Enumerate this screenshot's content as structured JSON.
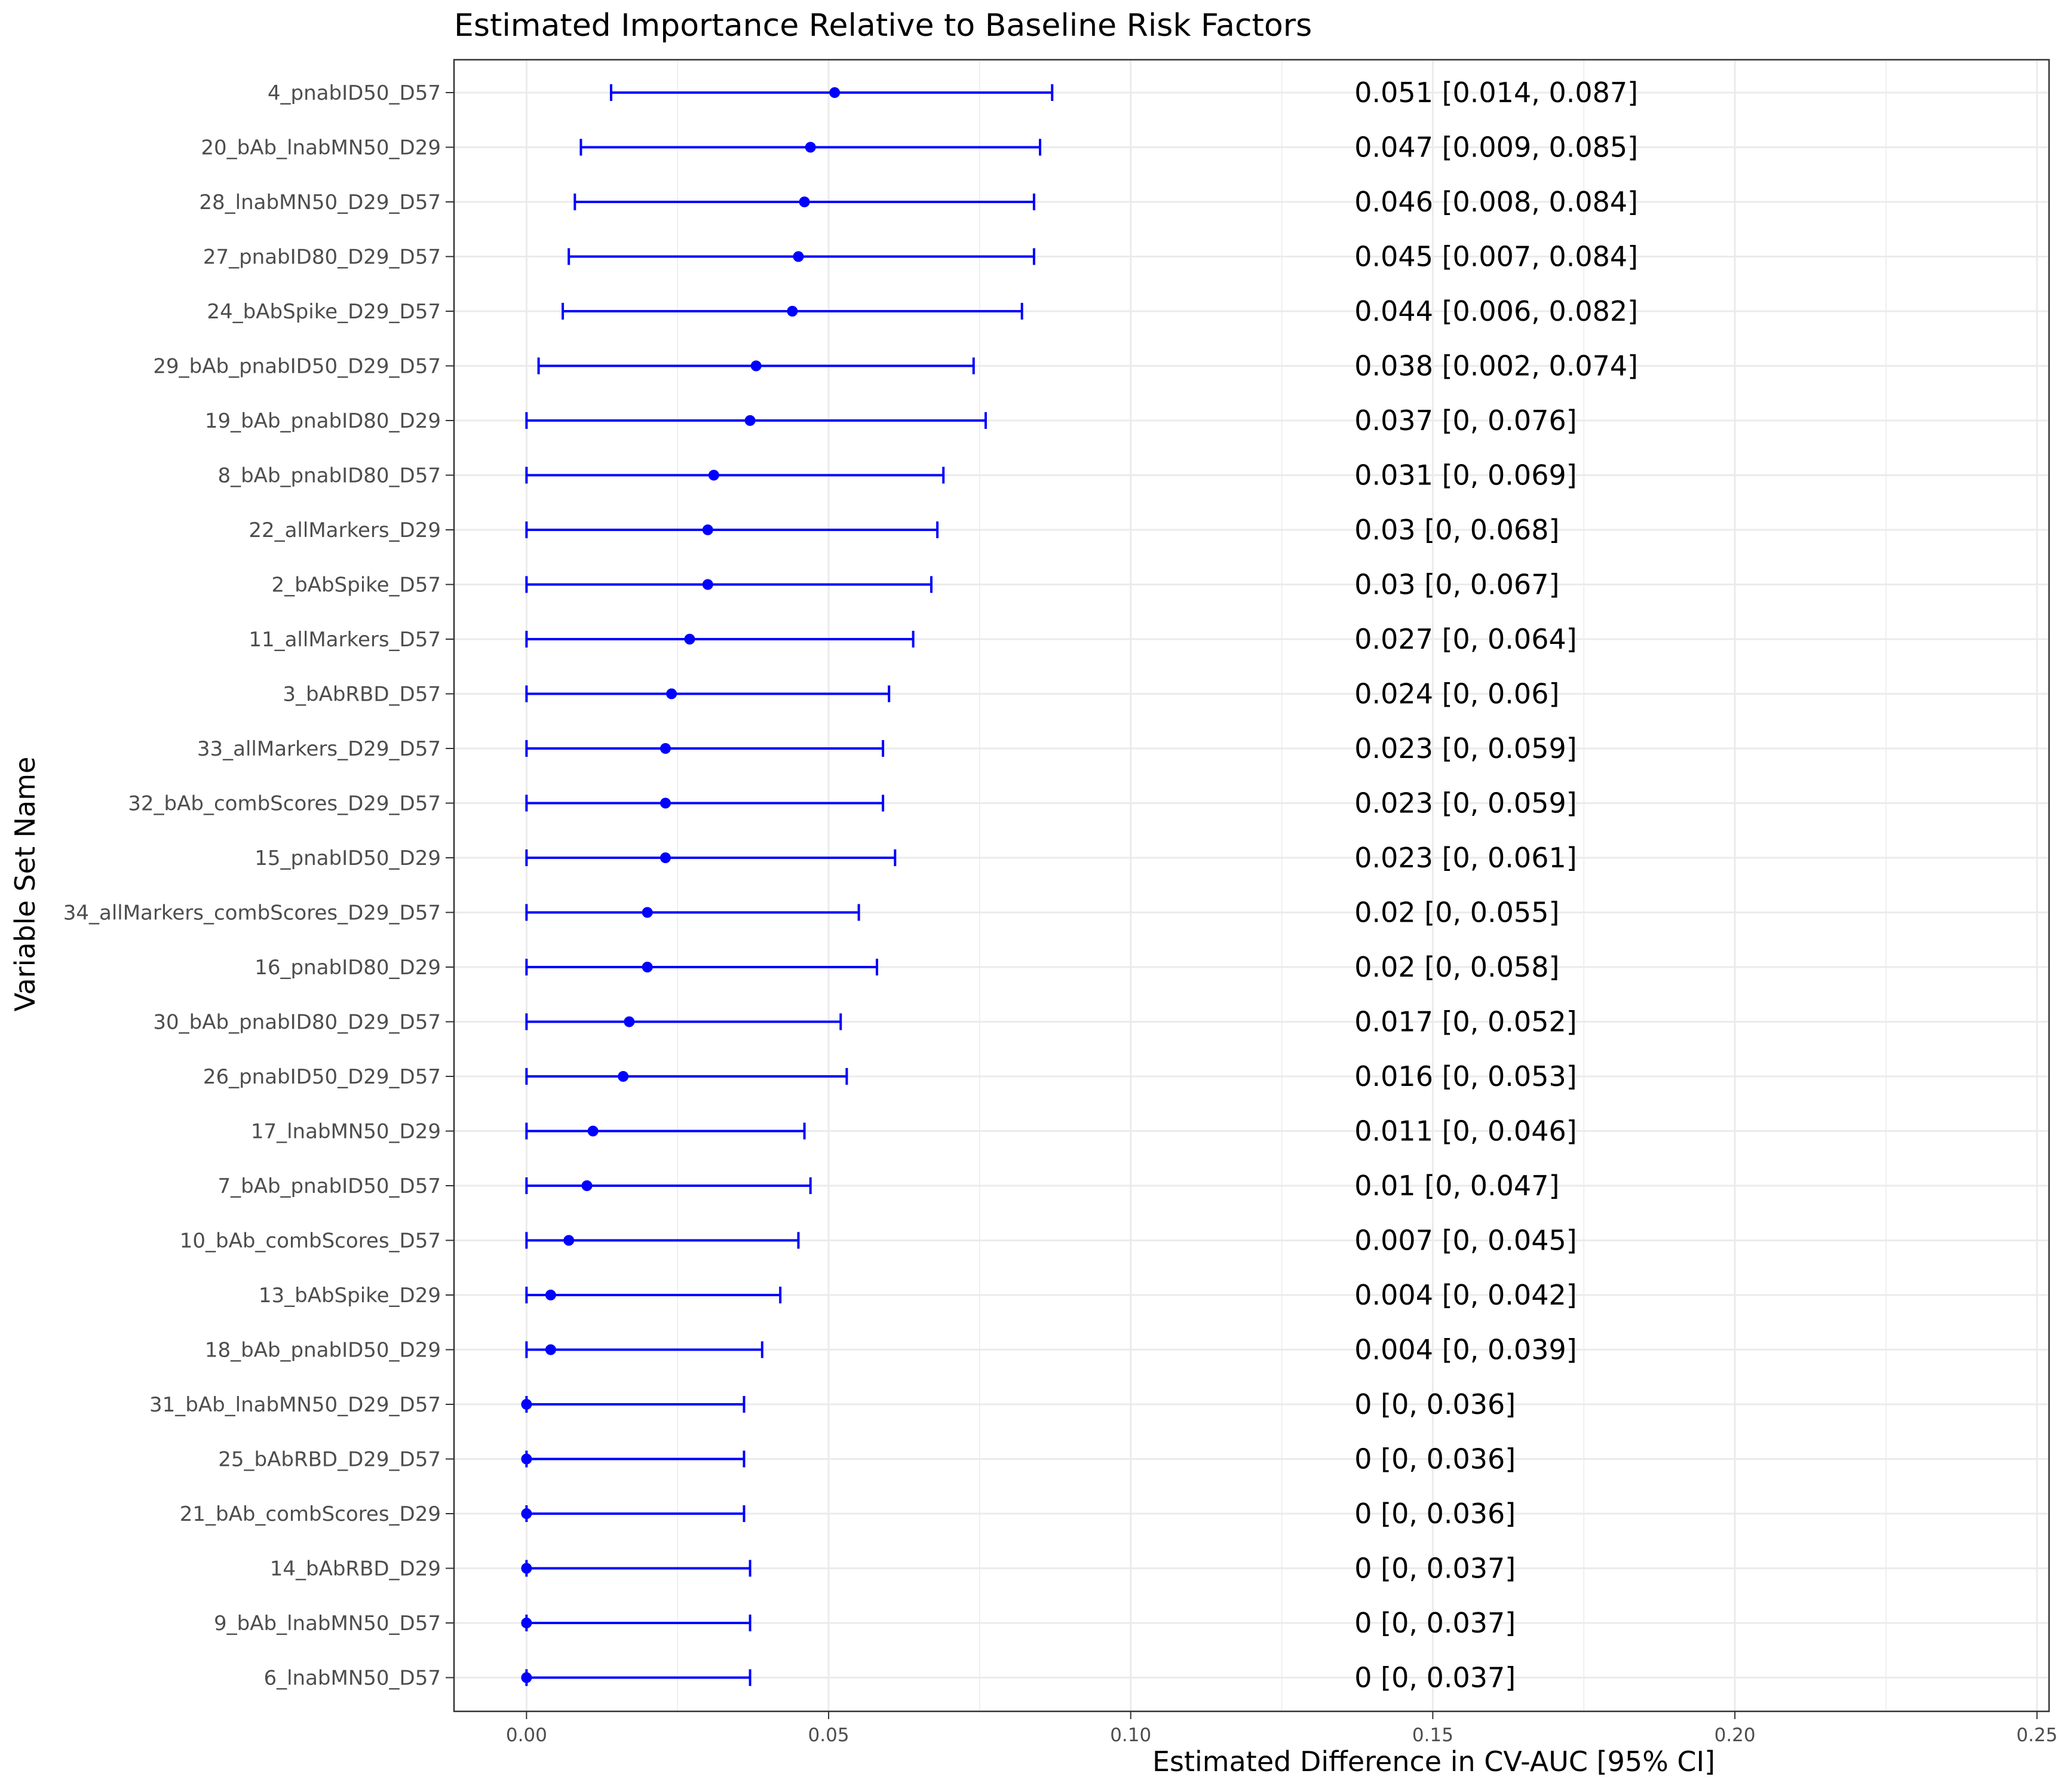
{
  "chart_data": {
    "type": "forest",
    "title": "Estimated Importance Relative to Baseline Risk Factors",
    "xlabel": "Estimated Difference in CV-AUC [95% CI]",
    "ylabel": "Variable Set Name",
    "xlim": [
      -0.012,
      0.252
    ],
    "x_ticks": [
      0.0,
      0.05,
      0.1,
      0.15,
      0.2,
      0.25
    ],
    "x_tick_labels": [
      "0.00",
      "0.05",
      "0.10",
      "0.15",
      "0.20",
      "0.25"
    ],
    "annotation_x": 0.14,
    "grid": true,
    "colors": {
      "series": "#0000ff",
      "grid": "#ebebeb",
      "panel_border": "#333333"
    },
    "rows": [
      {
        "name": "4_pnabID50_D57",
        "est": 0.051,
        "lower": 0.014,
        "upper": 0.087,
        "label": "0.051 [0.014, 0.087]"
      },
      {
        "name": "20_bAb_lnabMN50_D29",
        "est": 0.047,
        "lower": 0.009,
        "upper": 0.085,
        "label": "0.047 [0.009, 0.085]"
      },
      {
        "name": "28_lnabMN50_D29_D57",
        "est": 0.046,
        "lower": 0.008,
        "upper": 0.084,
        "label": "0.046 [0.008, 0.084]"
      },
      {
        "name": "27_pnabID80_D29_D57",
        "est": 0.045,
        "lower": 0.007,
        "upper": 0.084,
        "label": "0.045 [0.007, 0.084]"
      },
      {
        "name": "24_bAbSpike_D29_D57",
        "est": 0.044,
        "lower": 0.006,
        "upper": 0.082,
        "label": "0.044 [0.006, 0.082]"
      },
      {
        "name": "29_bAb_pnabID50_D29_D57",
        "est": 0.038,
        "lower": 0.002,
        "upper": 0.074,
        "label": "0.038 [0.002, 0.074]"
      },
      {
        "name": "19_bAb_pnabID80_D29",
        "est": 0.037,
        "lower": 0,
        "upper": 0.076,
        "label": "0.037 [0, 0.076]"
      },
      {
        "name": "8_bAb_pnabID80_D57",
        "est": 0.031,
        "lower": 0,
        "upper": 0.069,
        "label": "0.031 [0, 0.069]"
      },
      {
        "name": "22_allMarkers_D29",
        "est": 0.03,
        "lower": 0,
        "upper": 0.068,
        "label": "0.03 [0, 0.068]"
      },
      {
        "name": "2_bAbSpike_D57",
        "est": 0.03,
        "lower": 0,
        "upper": 0.067,
        "label": "0.03 [0, 0.067]"
      },
      {
        "name": "11_allMarkers_D57",
        "est": 0.027,
        "lower": 0,
        "upper": 0.064,
        "label": "0.027 [0, 0.064]"
      },
      {
        "name": "3_bAbRBD_D57",
        "est": 0.024,
        "lower": 0,
        "upper": 0.06,
        "label": "0.024 [0, 0.06]"
      },
      {
        "name": "33_allMarkers_D29_D57",
        "est": 0.023,
        "lower": 0,
        "upper": 0.059,
        "label": "0.023 [0, 0.059]"
      },
      {
        "name": "32_bAb_combScores_D29_D57",
        "est": 0.023,
        "lower": 0,
        "upper": 0.059,
        "label": "0.023 [0, 0.059]"
      },
      {
        "name": "15_pnabID50_D29",
        "est": 0.023,
        "lower": 0,
        "upper": 0.061,
        "label": "0.023 [0, 0.061]"
      },
      {
        "name": "34_allMarkers_combScores_D29_D57",
        "est": 0.02,
        "lower": 0,
        "upper": 0.055,
        "label": "0.02 [0, 0.055]"
      },
      {
        "name": "16_pnabID80_D29",
        "est": 0.02,
        "lower": 0,
        "upper": 0.058,
        "label": "0.02 [0, 0.058]"
      },
      {
        "name": "30_bAb_pnabID80_D29_D57",
        "est": 0.017,
        "lower": 0,
        "upper": 0.052,
        "label": "0.017 [0, 0.052]"
      },
      {
        "name": "26_pnabID50_D29_D57",
        "est": 0.016,
        "lower": 0,
        "upper": 0.053,
        "label": "0.016 [0, 0.053]"
      },
      {
        "name": "17_lnabMN50_D29",
        "est": 0.011,
        "lower": 0,
        "upper": 0.046,
        "label": "0.011 [0, 0.046]"
      },
      {
        "name": "7_bAb_pnabID50_D57",
        "est": 0.01,
        "lower": 0,
        "upper": 0.047,
        "label": "0.01 [0, 0.047]"
      },
      {
        "name": "10_bAb_combScores_D57",
        "est": 0.007,
        "lower": 0,
        "upper": 0.045,
        "label": "0.007 [0, 0.045]"
      },
      {
        "name": "13_bAbSpike_D29",
        "est": 0.004,
        "lower": 0,
        "upper": 0.042,
        "label": "0.004 [0, 0.042]"
      },
      {
        "name": "18_bAb_pnabID50_D29",
        "est": 0.004,
        "lower": 0,
        "upper": 0.039,
        "label": "0.004 [0, 0.039]"
      },
      {
        "name": "31_bAb_lnabMN50_D29_D57",
        "est": 0,
        "lower": 0,
        "upper": 0.036,
        "label": "0 [0, 0.036]"
      },
      {
        "name": "25_bAbRBD_D29_D57",
        "est": 0,
        "lower": 0,
        "upper": 0.036,
        "label": "0 [0, 0.036]"
      },
      {
        "name": "21_bAb_combScores_D29",
        "est": 0,
        "lower": 0,
        "upper": 0.036,
        "label": "0 [0, 0.036]"
      },
      {
        "name": "14_bAbRBD_D29",
        "est": 0,
        "lower": 0,
        "upper": 0.037,
        "label": "0 [0, 0.037]"
      },
      {
        "name": "9_bAb_lnabMN50_D57",
        "est": 0,
        "lower": 0,
        "upper": 0.037,
        "label": "0 [0, 0.037]"
      },
      {
        "name": "6_lnabMN50_D57",
        "est": 0,
        "lower": 0,
        "upper": 0.037,
        "label": "0 [0, 0.037]"
      }
    ]
  }
}
